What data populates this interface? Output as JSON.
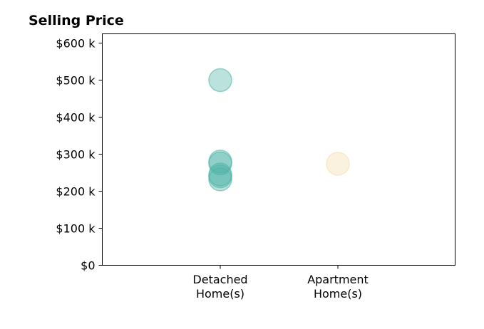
{
  "chart_data": {
    "type": "scatter",
    "title": "Selling Price",
    "xlabel": "",
    "ylabel": "",
    "categories": [
      "Detached\nHome(s)",
      "Apartment\nHome(s)"
    ],
    "xlim": [
      -1,
      2
    ],
    "ylim": [
      0,
      625000
    ],
    "yticks": [
      {
        "value": 0,
        "label": "$0"
      },
      {
        "value": 100000,
        "label": "$100 k"
      },
      {
        "value": 200000,
        "label": "$200 k"
      },
      {
        "value": 300000,
        "label": "$300 k"
      },
      {
        "value": 400000,
        "label": "$400 k"
      },
      {
        "value": 500000,
        "label": "$500 k"
      },
      {
        "value": 600000,
        "label": "$600 k"
      }
    ],
    "grid": false,
    "series": [
      {
        "category": 0,
        "color": "#4db3a6",
        "values": [
          500000,
          280000,
          275000,
          245000,
          240000,
          232000
        ]
      },
      {
        "category": 1,
        "color": "#f2deac",
        "values": [
          274000
        ]
      }
    ]
  }
}
